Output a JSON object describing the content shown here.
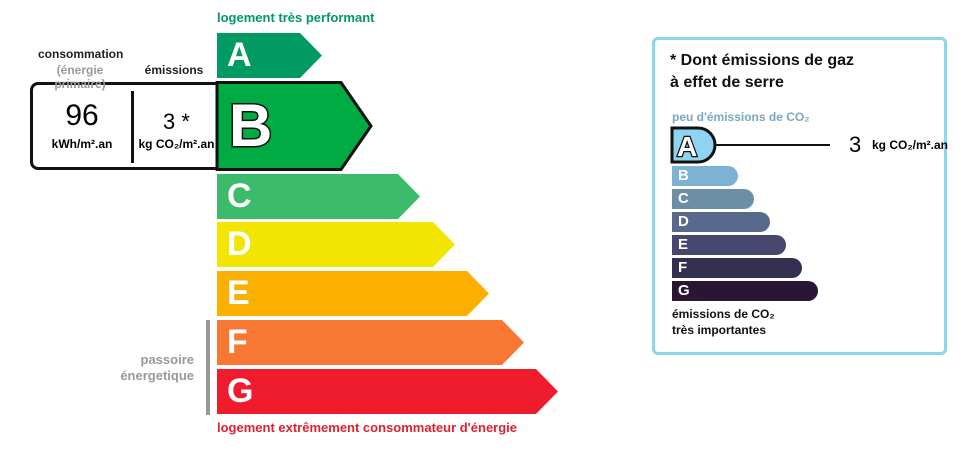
{
  "energy": {
    "top_label": "logement très performant",
    "bottom_label": "logement extrêmement consommateur d'énergie",
    "passoire": [
      "passoire",
      "énergetique"
    ],
    "classes": [
      {
        "letter": "A",
        "color": "#009a62"
      },
      {
        "letter": "B",
        "color": "#00ab44"
      },
      {
        "letter": "C",
        "color": "#3cbb6a"
      },
      {
        "letter": "D",
        "color": "#f2e600"
      },
      {
        "letter": "E",
        "color": "#fbb000"
      },
      {
        "letter": "F",
        "color": "#f77733"
      },
      {
        "letter": "G",
        "color": "#ee1c2d"
      }
    ],
    "selected": "B",
    "consumption_header": "consommation",
    "consumption_sub": "(énergie primaire)",
    "emissions_header": "émissions",
    "consumption_value": "96",
    "consumption_unit": "kWh/m².an",
    "emissions_value": "3 *",
    "emissions_unit": "kg CO₂/m².an"
  },
  "ges": {
    "title_line1": "* Dont émissions de gaz",
    "title_line2": "à effet de serre",
    "top_label": "peu d'émissions de CO₂",
    "bottom_line1": "émissions de CO₂",
    "bottom_line2": "très importantes",
    "selected": "A",
    "value": "3",
    "unit": "kg CO₂/m².an",
    "border_color": "#8ed6ea",
    "classes": [
      {
        "letter": "A",
        "color": "#8fd3f3"
      },
      {
        "letter": "B",
        "color": "#7db2d2"
      },
      {
        "letter": "C",
        "color": "#6d8fa6"
      },
      {
        "letter": "D",
        "color": "#586a8c"
      },
      {
        "letter": "E",
        "color": "#47466c"
      },
      {
        "letter": "F",
        "color": "#33304f"
      },
      {
        "letter": "G",
        "color": "#291634"
      }
    ]
  }
}
